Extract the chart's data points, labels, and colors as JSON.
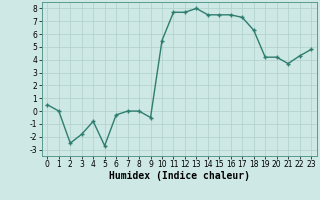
{
  "x": [
    0,
    1,
    2,
    3,
    4,
    5,
    6,
    7,
    8,
    9,
    10,
    11,
    12,
    13,
    14,
    15,
    16,
    17,
    18,
    19,
    20,
    21,
    22,
    23
  ],
  "y": [
    0.5,
    0.0,
    -2.5,
    -1.8,
    -0.8,
    -2.7,
    -0.3,
    0.0,
    0.0,
    -0.5,
    5.5,
    7.7,
    7.7,
    8.0,
    7.5,
    7.5,
    7.5,
    7.3,
    6.3,
    4.2,
    4.2,
    3.7,
    4.3,
    4.8
  ],
  "line_color": "#2e7d6e",
  "marker": "+",
  "marker_size": 3,
  "linewidth": 1.0,
  "markeredgewidth": 1.0,
  "xlabel": "Humidex (Indice chaleur)",
  "xlim": [
    -0.5,
    23.5
  ],
  "ylim": [
    -3.5,
    8.5
  ],
  "yticks": [
    -3,
    -2,
    -1,
    0,
    1,
    2,
    3,
    4,
    5,
    6,
    7,
    8
  ],
  "xticks": [
    0,
    1,
    2,
    3,
    4,
    5,
    6,
    7,
    8,
    9,
    10,
    11,
    12,
    13,
    14,
    15,
    16,
    17,
    18,
    19,
    20,
    21,
    22,
    23
  ],
  "bg_color": "#cde8e5",
  "grid_color": "#b0d0cc",
  "tick_fontsize": 5.5,
  "xlabel_fontsize": 7
}
